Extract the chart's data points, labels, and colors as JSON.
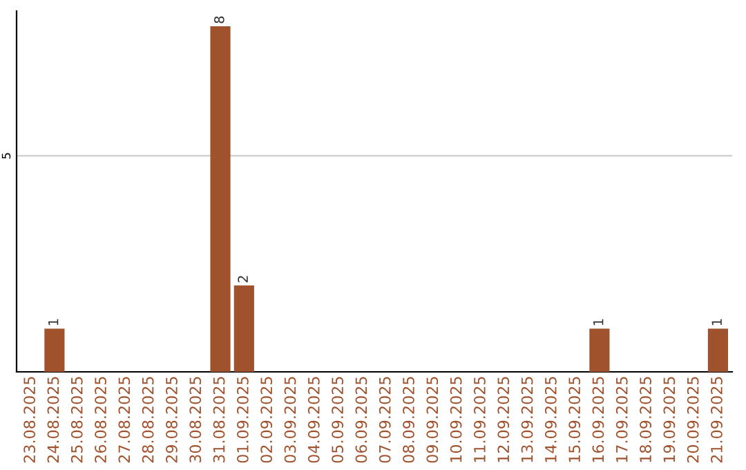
{
  "chart_data": {
    "type": "bar",
    "categories": [
      "23.08.2025",
      "24.08.2025",
      "25.08.2025",
      "26.08.2025",
      "27.08.2025",
      "28.08.2025",
      "29.08.2025",
      "30.08.2025",
      "31.08.2025",
      "01.09.2025",
      "02.09.2025",
      "03.09.2025",
      "04.09.2025",
      "05.09.2025",
      "06.09.2025",
      "07.09.2025",
      "08.09.2025",
      "09.09.2025",
      "10.09.2025",
      "11.09.2025",
      "12.09.2025",
      "13.09.2025",
      "14.09.2025",
      "15.09.2025",
      "16.09.2025",
      "17.09.2025",
      "18.09.2025",
      "19.09.2025",
      "20.09.2025",
      "21.09.2025"
    ],
    "values": [
      0,
      1,
      0,
      0,
      0,
      0,
      0,
      0,
      8,
      2,
      0,
      0,
      0,
      0,
      0,
      0,
      0,
      0,
      0,
      0,
      0,
      0,
      0,
      0,
      1,
      0,
      0,
      0,
      0,
      1
    ],
    "value_labels": [
      null,
      "1",
      null,
      null,
      null,
      null,
      null,
      null,
      "8",
      "2",
      null,
      null,
      null,
      null,
      null,
      null,
      null,
      null,
      null,
      null,
      null,
      null,
      null,
      null,
      "1",
      null,
      null,
      null,
      null,
      "1"
    ],
    "color": "#a0522d",
    "ylim": [
      0,
      8.35
    ],
    "yticks": [
      5
    ],
    "grid": "y"
  }
}
